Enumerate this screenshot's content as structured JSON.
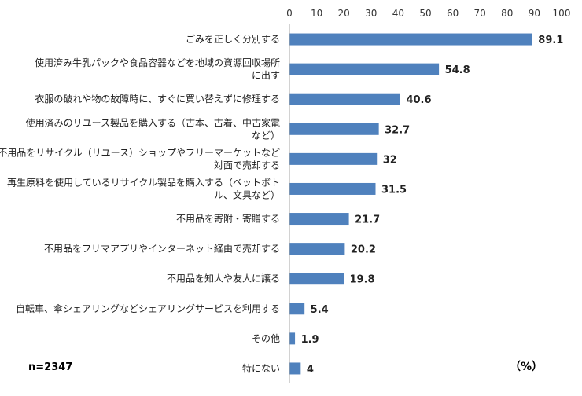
{
  "chart_data": {
    "type": "bar",
    "orientation": "horizontal",
    "categories": [
      [
        "ごみを正しく分別する"
      ],
      [
        "使用済み牛乳パックや食品容器などを地域の資源回収場所",
        "に出す"
      ],
      [
        "衣服の破れや物の故障時に、すぐに買い替えずに修理する"
      ],
      [
        "使用済みのリユース製品を購入する（古本、古着、中古家電",
        "など）"
      ],
      [
        "不用品をリサイクル（リユース）ショップやフリーマーケットなど",
        "対面で売却する"
      ],
      [
        "再生原料を使用しているリサイクル製品を購入する（ペットボト",
        "ル、文具など）"
      ],
      [
        "不用品を寄附・寄贈する"
      ],
      [
        "不用品をフリマアプリやインターネット経由で売却する"
      ],
      [
        "不用品を知人や友人に譲る"
      ],
      [
        "自転車、傘シェアリングなどシェアリングサービスを利用する"
      ],
      [
        "その他"
      ],
      [
        "特にない"
      ]
    ],
    "values": [
      89.1,
      54.8,
      40.6,
      32.7,
      32,
      31.5,
      21.7,
      20.2,
      19.8,
      5.4,
      1.9,
      4
    ],
    "value_labels": [
      "89.1",
      "54.8",
      "40.6",
      "32.7",
      "32",
      "31.5",
      "21.7",
      "20.2",
      "19.8",
      "5.4",
      "1.9",
      "4"
    ],
    "xlim": [
      0,
      100
    ],
    "xticks": [
      0,
      10,
      20,
      30,
      40,
      50,
      60,
      70,
      80,
      90,
      100
    ],
    "xaxis_position": "top",
    "unit_label": "（%）",
    "sample_note": "n=2347",
    "grid": false,
    "bar_color": "#4f81bd"
  }
}
